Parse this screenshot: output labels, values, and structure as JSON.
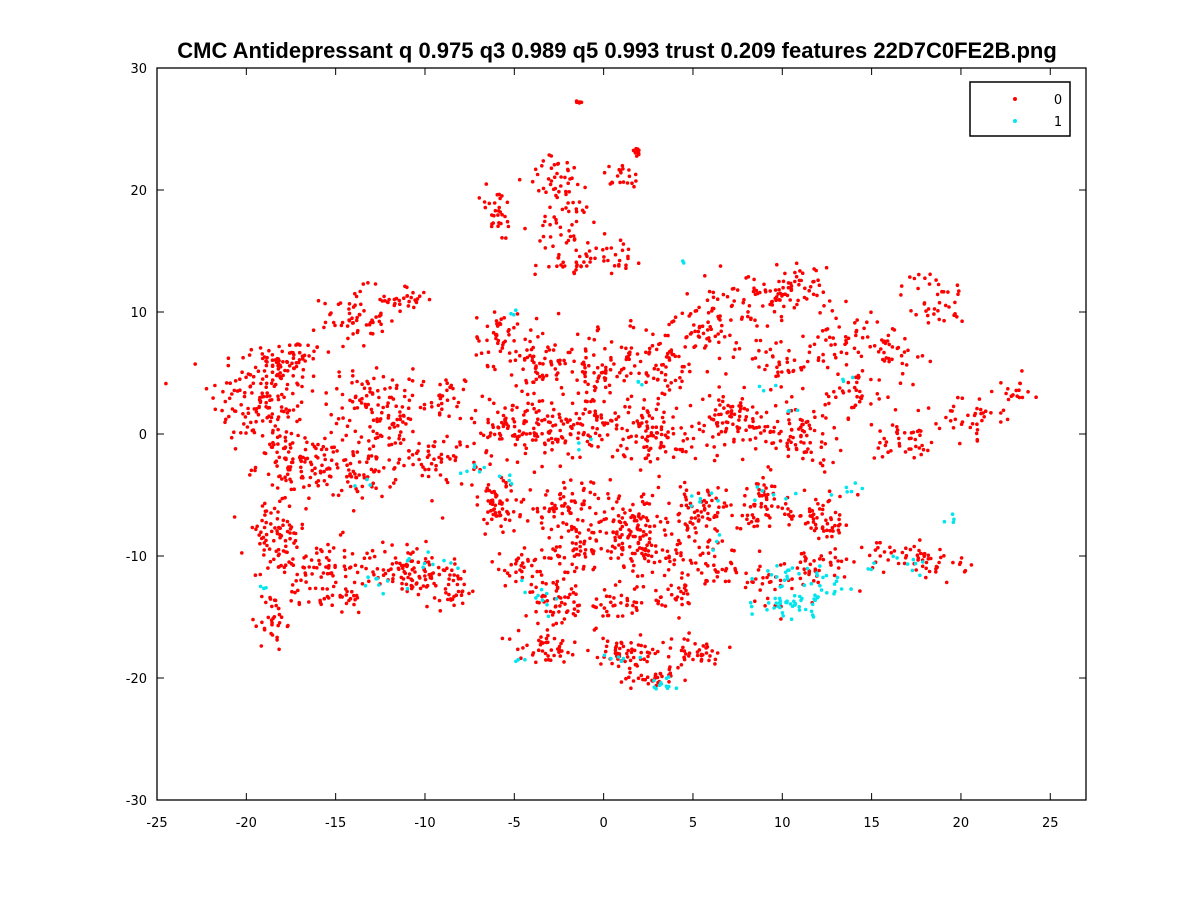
{
  "chart_data": {
    "type": "scatter",
    "title": "CMC Antidepressant q 0.975 q3 0.989 q5 0.993 trust 0.209 features 22D7C0FE2B.png",
    "xlabel": "",
    "ylabel": "",
    "xlim": [
      -25,
      27
    ],
    "ylim": [
      -30,
      30
    ],
    "x_ticks": [
      -25,
      -20,
      -15,
      -10,
      -5,
      0,
      5,
      10,
      15,
      20,
      25
    ],
    "y_ticks": [
      -30,
      -20,
      -10,
      0,
      10,
      20,
      30
    ],
    "grid": false,
    "legend": {
      "position": "top-right",
      "entries": [
        "0",
        "1"
      ]
    },
    "series": [
      {
        "name": "0",
        "color": "#ff0000",
        "clusters": [
          [
            -19,
            3,
            2.5,
            4,
            160
          ],
          [
            -17.5,
            6,
            1.5,
            1.5,
            50
          ],
          [
            -14,
            9.5,
            1.5,
            2,
            60
          ],
          [
            -11,
            11,
            1,
            1,
            30
          ],
          [
            -13,
            3,
            2,
            2,
            70
          ],
          [
            -12,
            0,
            1.5,
            1.5,
            40
          ],
          [
            -17,
            -2.5,
            2,
            2,
            90
          ],
          [
            -14,
            -3,
            2,
            2,
            80
          ],
          [
            -9,
            -2,
            2,
            1.5,
            50
          ],
          [
            -9,
            3,
            1.5,
            1.5,
            40
          ],
          [
            -18.5,
            -8.5,
            1.5,
            2.5,
            70
          ],
          [
            -16,
            -11,
            2.5,
            2,
            80
          ],
          [
            -11,
            -11,
            2,
            2,
            90
          ],
          [
            -8.5,
            -12.5,
            1.5,
            1.5,
            40
          ],
          [
            -18.5,
            -15.5,
            0.6,
            2,
            30
          ],
          [
            -15,
            -13.5,
            1.5,
            1,
            30
          ],
          [
            -6,
            18,
            0.8,
            2,
            30
          ],
          [
            -2.5,
            21,
            1.5,
            1.5,
            40
          ],
          [
            1,
            21,
            1,
            1,
            20
          ],
          [
            -2,
            17,
            1.5,
            2,
            40
          ],
          [
            0.5,
            15,
            1.5,
            1.5,
            30
          ],
          [
            -2,
            13.8,
            1.5,
            0.5,
            20
          ],
          [
            1.8,
            23.2,
            0.3,
            0.3,
            10
          ],
          [
            -1.3,
            27.2,
            0.2,
            0.2,
            6
          ],
          [
            -6,
            8,
            1,
            2,
            40
          ],
          [
            -3.5,
            6,
            1.5,
            2.5,
            70
          ],
          [
            -0.5,
            5,
            1.5,
            2.5,
            70
          ],
          [
            3,
            6,
            2,
            3,
            80
          ],
          [
            6,
            9,
            1.5,
            3,
            70
          ],
          [
            9,
            11,
            2,
            2,
            50
          ],
          [
            11,
            12,
            1.5,
            1.5,
            40
          ],
          [
            10,
            6,
            1.5,
            2,
            40
          ],
          [
            13,
            8,
            1.5,
            2,
            40
          ],
          [
            16,
            7,
            1.5,
            2,
            40
          ],
          [
            18.5,
            11,
            1.5,
            2,
            40
          ],
          [
            -5,
            0.5,
            2,
            2,
            90
          ],
          [
            -1,
            0.5,
            2,
            2,
            90
          ],
          [
            3,
            0,
            2,
            2,
            90
          ],
          [
            7,
            1,
            2,
            2,
            80
          ],
          [
            11,
            0,
            2,
            2,
            80
          ],
          [
            14,
            3,
            1.5,
            2,
            40
          ],
          [
            17,
            -0.5,
            1.5,
            1.5,
            40
          ],
          [
            20.5,
            1.5,
            1.5,
            1.5,
            40
          ],
          [
            23,
            3.5,
            1,
            1,
            15
          ],
          [
            -6,
            -6,
            1.5,
            2,
            60
          ],
          [
            -2,
            -6,
            2,
            2,
            80
          ],
          [
            1.5,
            -7.5,
            2,
            2,
            80
          ],
          [
            5.5,
            -6.5,
            2,
            2,
            80
          ],
          [
            9,
            -6,
            2,
            2,
            60
          ],
          [
            12.5,
            -7,
            1.5,
            1.5,
            50
          ],
          [
            -4.5,
            -11,
            1.5,
            1.5,
            40
          ],
          [
            -1.5,
            -9.5,
            1.5,
            1.5,
            50
          ],
          [
            2.5,
            -10,
            2,
            1.5,
            60
          ],
          [
            6,
            -11,
            1.5,
            1.5,
            40
          ],
          [
            -2.5,
            -14,
            1.5,
            1.5,
            50
          ],
          [
            0.5,
            -14,
            1.5,
            1.5,
            40
          ],
          [
            4,
            -13.5,
            1,
            1,
            25
          ],
          [
            -3,
            -17.5,
            1.5,
            1,
            40
          ],
          [
            1,
            -18,
            2,
            1,
            60
          ],
          [
            5,
            -18,
            1.5,
            1,
            40
          ],
          [
            3,
            -20,
            1,
            0.6,
            30
          ],
          [
            18.5,
            -10.5,
            1.5,
            1,
            30
          ],
          [
            16.5,
            -10,
            1.5,
            1,
            30
          ],
          [
            9,
            -12,
            1.5,
            1.5,
            30
          ],
          [
            12,
            -11,
            1.5,
            1.5,
            40
          ]
        ]
      },
      {
        "name": "1",
        "color": "#00e5ee",
        "clusters": [
          [
            10.5,
            -14,
            1.5,
            0.8,
            40
          ],
          [
            12,
            -12,
            1.5,
            1,
            20
          ],
          [
            10,
            -11.5,
            1.5,
            1,
            15
          ],
          [
            3,
            -20.5,
            1,
            0.5,
            12
          ],
          [
            1,
            -18.5,
            1,
            0.5,
            6
          ],
          [
            -4.5,
            -18.5,
            0.5,
            0.3,
            3
          ],
          [
            -3.5,
            -13,
            1,
            1,
            10
          ],
          [
            -12.5,
            -12,
            1,
            1,
            8
          ],
          [
            -10.5,
            -10.5,
            0.8,
            0.8,
            6
          ],
          [
            -19,
            -12.5,
            0.3,
            0.3,
            3
          ],
          [
            5.5,
            -5.5,
            0.8,
            0.8,
            6
          ],
          [
            9.5,
            -5,
            0.8,
            0.8,
            6
          ],
          [
            14,
            -4.5,
            1,
            1,
            6
          ],
          [
            -7,
            -3,
            0.8,
            0.5,
            6
          ],
          [
            -5.5,
            -3.5,
            0.5,
            0.5,
            4
          ],
          [
            19.5,
            -7,
            0.5,
            0.5,
            4
          ],
          [
            17.5,
            -10.5,
            1,
            0.8,
            8
          ],
          [
            15,
            -11,
            0.5,
            0.5,
            3
          ],
          [
            4.5,
            14,
            0.2,
            0.2,
            2
          ],
          [
            -5,
            10,
            0.3,
            0.3,
            3
          ],
          [
            2,
            4,
            0.5,
            0.5,
            3
          ],
          [
            9,
            3.5,
            0.5,
            0.5,
            3
          ],
          [
            -1,
            -0.5,
            0.5,
            0.5,
            3
          ],
          [
            -8.5,
            -10.5,
            0.5,
            0.5,
            3
          ],
          [
            13.5,
            4.5,
            0.5,
            0.5,
            3
          ],
          [
            -13.5,
            -4,
            0.5,
            0.5,
            3
          ],
          [
            6.5,
            -9,
            0.5,
            0.5,
            3
          ],
          [
            10.5,
            1.8,
            0.4,
            0.4,
            3
          ]
        ]
      }
    ]
  }
}
